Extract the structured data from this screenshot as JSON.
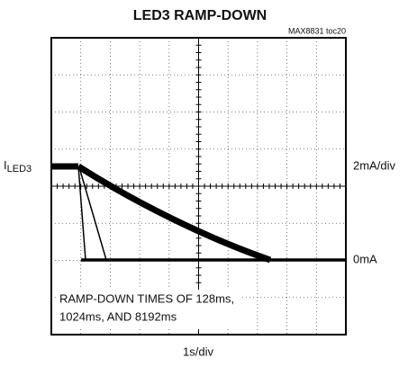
{
  "header": {
    "title": "LED3 RAMP-DOWN",
    "ref": "MAX8831 toc20"
  },
  "labels": {
    "trace_name": "I",
    "trace_sub": "LED3",
    "vertical_scale": "2mA/div",
    "zero_level": "0mA",
    "horizontal_scale": "1s/div"
  },
  "annotation": {
    "lines": [
      "RAMP-DOWN TIMES OF 128ms,",
      "1024ms, AND 8192ms"
    ]
  }
}
